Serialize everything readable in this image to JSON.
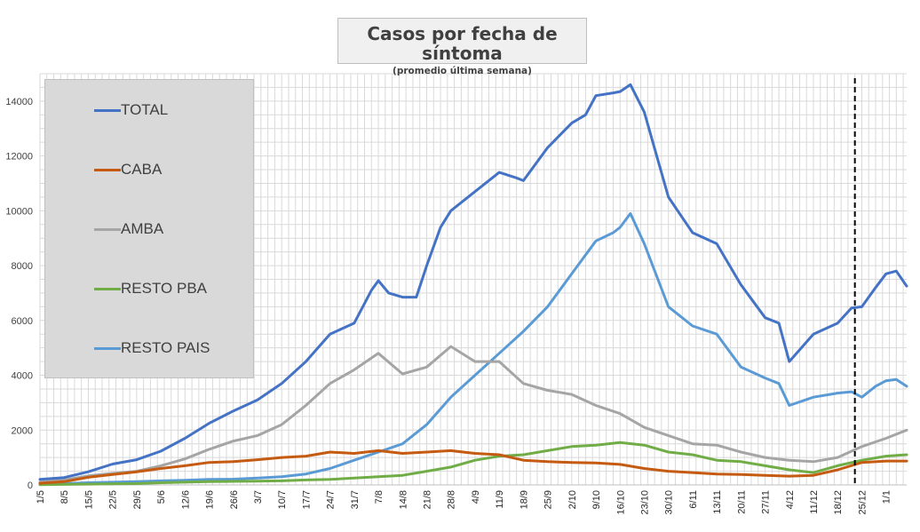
{
  "title": "Casos por fecha de síntoma",
  "subtitle": "(promedio última semana)",
  "chart_data": {
    "type": "line",
    "title": "Casos por fecha de síntoma",
    "subtitle": "(promedio última semana)",
    "xlabel": "",
    "ylabel": "",
    "ylim": [
      0,
      15000
    ],
    "yticks": [
      "0",
      "2000",
      "4000",
      "6000",
      "8000",
      "10000",
      "12000",
      "14000"
    ],
    "x_start": "1/5",
    "x_end": "7/1",
    "x_tick_labels": [
      "1/5",
      "8/5",
      "15/5",
      "22/5",
      "29/5",
      "5/6",
      "12/6",
      "19/6",
      "26/6",
      "3/7",
      "10/7",
      "17/7",
      "24/7",
      "31/7",
      "7/8",
      "14/8",
      "21/8",
      "28/8",
      "4/9",
      "11/9",
      "18/9",
      "25/9",
      "2/10",
      "9/10",
      "16/10",
      "23/10",
      "30/10",
      "6/11",
      "13/11",
      "20/11",
      "27/11",
      "4/12",
      "11/12",
      "18/12",
      "25/12",
      "1/1"
    ],
    "grid": true,
    "legend_position": "top-left",
    "reference_line_label": "",
    "reference_line_x": "23/12",
    "series": [
      {
        "name": "TOTAL",
        "color": "#4472c4",
        "x": [
          "1/5",
          "8/5",
          "15/5",
          "22/5",
          "29/5",
          "5/6",
          "12/6",
          "19/6",
          "26/6",
          "3/7",
          "10/7",
          "17/7",
          "24/7",
          "31/7",
          "5/8",
          "7/8",
          "10/8",
          "14/8",
          "18/8",
          "21/8",
          "25/8",
          "28/8",
          "4/9",
          "11/9",
          "16/9",
          "18/9",
          "25/9",
          "2/10",
          "6/10",
          "9/10",
          "14/10",
          "16/10",
          "19/10",
          "23/10",
          "30/10",
          "6/11",
          "13/11",
          "20/11",
          "27/11",
          "1/12",
          "4/12",
          "11/12",
          "18/12",
          "22/12",
          "25/12",
          "29/12",
          "1/1",
          "4/1",
          "7/1"
        ],
        "values": [
          200,
          270,
          480,
          760,
          920,
          1230,
          1700,
          2250,
          2700,
          3100,
          3700,
          4500,
          5500,
          5900,
          7100,
          7450,
          7000,
          6850,
          6850,
          8000,
          9400,
          10000,
          10700,
          11400,
          11200,
          11100,
          12300,
          13200,
          13500,
          14200,
          14300,
          14350,
          14600,
          13600,
          10500,
          9200,
          8800,
          7300,
          6100,
          5900,
          4500,
          5500,
          5900,
          6450,
          6500,
          7200,
          7700,
          7800,
          7250
        ]
      },
      {
        "name": "CABA",
        "color": "#c55a11",
        "x": [
          "1/5",
          "8/5",
          "15/5",
          "22/5",
          "29/5",
          "5/6",
          "12/6",
          "19/6",
          "26/6",
          "3/7",
          "10/7",
          "17/7",
          "24/7",
          "31/7",
          "7/8",
          "14/8",
          "21/8",
          "28/8",
          "4/9",
          "11/9",
          "18/9",
          "25/9",
          "2/10",
          "9/10",
          "16/10",
          "23/10",
          "30/10",
          "6/11",
          "13/11",
          "20/11",
          "27/11",
          "4/12",
          "11/12",
          "18/12",
          "25/12",
          "1/1",
          "7/1"
        ],
        "values": [
          60,
          120,
          280,
          380,
          480,
          600,
          700,
          820,
          850,
          920,
          1000,
          1050,
          1200,
          1150,
          1250,
          1150,
          1200,
          1250,
          1150,
          1100,
          900,
          850,
          820,
          800,
          750,
          600,
          500,
          450,
          400,
          380,
          350,
          320,
          350,
          550,
          820,
          870,
          870
        ]
      },
      {
        "name": "AMBA",
        "color": "#a5a5a5",
        "x": [
          "1/5",
          "8/5",
          "15/5",
          "22/5",
          "29/5",
          "5/6",
          "12/6",
          "19/6",
          "26/6",
          "3/7",
          "10/7",
          "17/7",
          "24/7",
          "31/7",
          "7/8",
          "14/8",
          "21/8",
          "28/8",
          "4/9",
          "11/9",
          "18/9",
          "25/9",
          "2/10",
          "9/10",
          "16/10",
          "23/10",
          "30/10",
          "6/11",
          "13/11",
          "20/11",
          "27/11",
          "4/12",
          "11/12",
          "18/12",
          "25/12",
          "1/1",
          "7/1"
        ],
        "values": [
          100,
          180,
          330,
          420,
          500,
          700,
          950,
          1300,
          1600,
          1800,
          2200,
          2900,
          3700,
          4200,
          4800,
          4050,
          4300,
          5050,
          4500,
          4500,
          3700,
          3450,
          3300,
          2900,
          2600,
          2100,
          1800,
          1500,
          1450,
          1200,
          1000,
          900,
          850,
          1000,
          1400,
          1700,
          2000
        ]
      },
      {
        "name": "RESTO PBA",
        "color": "#70ad47",
        "x": [
          "1/5",
          "8/5",
          "15/5",
          "22/5",
          "29/5",
          "5/6",
          "12/6",
          "19/6",
          "26/6",
          "3/7",
          "10/7",
          "17/7",
          "24/7",
          "31/7",
          "7/8",
          "14/8",
          "21/8",
          "28/8",
          "4/9",
          "11/9",
          "18/9",
          "25/9",
          "2/10",
          "9/10",
          "16/10",
          "23/10",
          "30/10",
          "6/11",
          "13/11",
          "20/11",
          "27/11",
          "4/12",
          "11/12",
          "18/12",
          "25/12",
          "1/1",
          "7/1"
        ],
        "values": [
          10,
          20,
          30,
          40,
          50,
          80,
          100,
          120,
          130,
          140,
          150,
          180,
          200,
          250,
          300,
          350,
          500,
          650,
          900,
          1050,
          1100,
          1250,
          1400,
          1450,
          1550,
          1450,
          1200,
          1100,
          900,
          850,
          700,
          550,
          450,
          700,
          900,
          1050,
          1100
        ]
      },
      {
        "name": "RESTO PAIS",
        "color": "#5b9bd5",
        "x": [
          "1/5",
          "8/5",
          "15/5",
          "22/5",
          "29/5",
          "5/6",
          "12/6",
          "19/6",
          "26/6",
          "3/7",
          "10/7",
          "17/7",
          "24/7",
          "31/7",
          "7/8",
          "14/8",
          "21/8",
          "28/8",
          "4/9",
          "11/9",
          "18/9",
          "25/9",
          "2/10",
          "9/10",
          "14/10",
          "16/10",
          "19/10",
          "23/10",
          "30/10",
          "6/11",
          "13/11",
          "20/11",
          "27/11",
          "1/12",
          "4/12",
          "11/12",
          "18/12",
          "22/12",
          "25/12",
          "29/12",
          "1/1",
          "4/1",
          "7/1"
        ],
        "values": [
          30,
          50,
          80,
          100,
          120,
          150,
          170,
          200,
          210,
          250,
          300,
          400,
          600,
          900,
          1200,
          1500,
          2200,
          3200,
          4000,
          4800,
          5600,
          6500,
          7700,
          8900,
          9200,
          9400,
          9900,
          8800,
          6500,
          5800,
          5500,
          4300,
          3900,
          3700,
          2900,
          3200,
          3350,
          3400,
          3200,
          3600,
          3800,
          3850,
          3600
        ]
      }
    ]
  }
}
